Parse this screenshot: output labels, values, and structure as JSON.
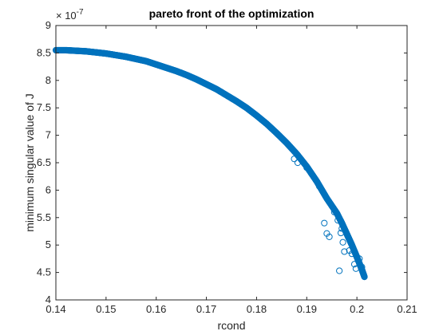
{
  "chart_data": {
    "type": "scatter",
    "title": "pareto front of the optimization",
    "xlabel": "rcond",
    "ylabel": "minimum singular value of J",
    "xlim": [
      0.14,
      0.21
    ],
    "ylim": [
      4,
      9
    ],
    "y_exponent_label": "× 10",
    "y_exponent_value": "-7",
    "x_ticks": [
      {
        "value": 0.14,
        "label": "0.14"
      },
      {
        "value": 0.15,
        "label": "0.15"
      },
      {
        "value": 0.16,
        "label": "0.16"
      },
      {
        "value": 0.17,
        "label": "0.17"
      },
      {
        "value": 0.18,
        "label": "0.18"
      },
      {
        "value": 0.19,
        "label": "0.19"
      },
      {
        "value": 0.2,
        "label": "0.2"
      },
      {
        "value": 0.21,
        "label": "0.21"
      }
    ],
    "y_ticks": [
      {
        "value": 4,
        "label": "4"
      },
      {
        "value": 4.5,
        "label": "4.5"
      },
      {
        "value": 5,
        "label": "5"
      },
      {
        "value": 5.5,
        "label": "5.5"
      },
      {
        "value": 6,
        "label": "6"
      },
      {
        "value": 6.5,
        "label": "6.5"
      },
      {
        "value": 7,
        "label": "7"
      },
      {
        "value": 7.5,
        "label": "7.5"
      },
      {
        "value": 8,
        "label": "8"
      },
      {
        "value": 8.5,
        "label": "8.5"
      },
      {
        "value": 9,
        "label": "9"
      }
    ],
    "marker": "circle-open",
    "marker_color": "#0072BD",
    "grid": false,
    "series": [
      {
        "front_points": [
          [
            0.14,
            8.55
          ],
          [
            0.142,
            8.55
          ],
          [
            0.144,
            8.54
          ],
          [
            0.146,
            8.53
          ],
          [
            0.148,
            8.51
          ],
          [
            0.15,
            8.49
          ],
          [
            0.152,
            8.46
          ],
          [
            0.154,
            8.43
          ],
          [
            0.156,
            8.39
          ],
          [
            0.158,
            8.35
          ],
          [
            0.16,
            8.29
          ],
          [
            0.162,
            8.23
          ],
          [
            0.164,
            8.17
          ],
          [
            0.166,
            8.1
          ],
          [
            0.168,
            8.02
          ],
          [
            0.17,
            7.93
          ],
          [
            0.172,
            7.84
          ],
          [
            0.174,
            7.73
          ],
          [
            0.176,
            7.62
          ],
          [
            0.178,
            7.5
          ],
          [
            0.18,
            7.36
          ],
          [
            0.182,
            7.21
          ],
          [
            0.184,
            7.04
          ],
          [
            0.186,
            6.86
          ],
          [
            0.188,
            6.66
          ],
          [
            0.19,
            6.43
          ],
          [
            0.192,
            6.16
          ],
          [
            0.194,
            5.85
          ],
          [
            0.196,
            5.58
          ],
          [
            0.197,
            5.4
          ],
          [
            0.198,
            5.2
          ],
          [
            0.199,
            5.0
          ],
          [
            0.2,
            4.78
          ],
          [
            0.201,
            4.55
          ],
          [
            0.2015,
            4.42
          ]
        ],
        "scattered_points": [
          [
            0.1875,
            6.57
          ],
          [
            0.1882,
            6.5
          ],
          [
            0.19,
            6.41
          ],
          [
            0.1925,
            6.07
          ],
          [
            0.1935,
            5.4
          ],
          [
            0.194,
            5.21
          ],
          [
            0.1945,
            5.15
          ],
          [
            0.1955,
            5.6
          ],
          [
            0.1962,
            5.45
          ],
          [
            0.1968,
            5.22
          ],
          [
            0.197,
            5.3
          ],
          [
            0.1972,
            5.05
          ],
          [
            0.1975,
            4.88
          ],
          [
            0.1965,
            4.53
          ],
          [
            0.1985,
            4.9
          ],
          [
            0.199,
            4.84
          ],
          [
            0.1995,
            4.65
          ],
          [
            0.1998,
            4.57
          ],
          [
            0.2005,
            4.75
          ],
          [
            0.201,
            4.6
          ]
        ]
      }
    ]
  }
}
